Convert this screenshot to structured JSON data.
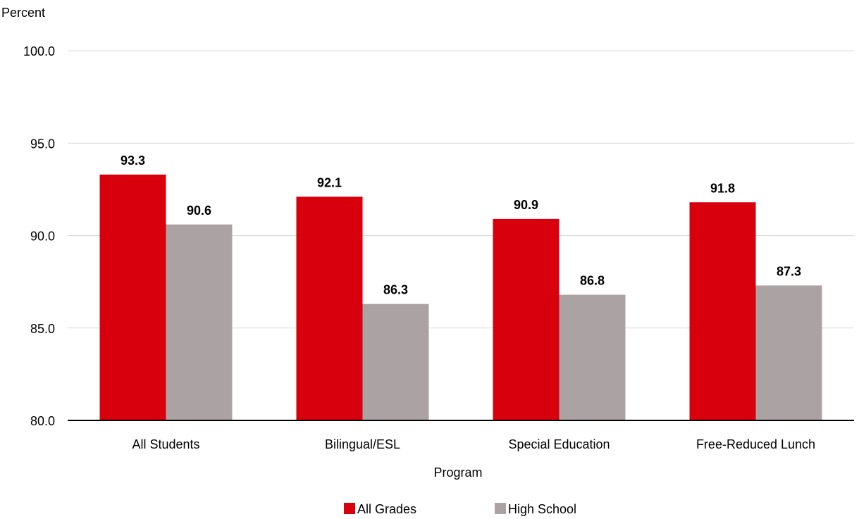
{
  "chart_data": {
    "type": "bar",
    "title": "",
    "ylabel": "Percent",
    "xlabel": "Program",
    "ylim": [
      80,
      100
    ],
    "yticks": [
      "80.0",
      "85.0",
      "90.0",
      "95.0",
      "100.0"
    ],
    "categories": [
      "All Students",
      "Bilingual/ESL",
      "Special Education",
      "Free-Reduced Lunch"
    ],
    "series": [
      {
        "name": "All Grades",
        "color": "#d9000d",
        "values": [
          93.3,
          92.1,
          90.9,
          91.8
        ]
      },
      {
        "name": "High School",
        "color": "#aba3a3",
        "values": [
          90.6,
          86.3,
          86.8,
          87.3
        ]
      }
    ],
    "grid": true,
    "legend": "bottom"
  }
}
